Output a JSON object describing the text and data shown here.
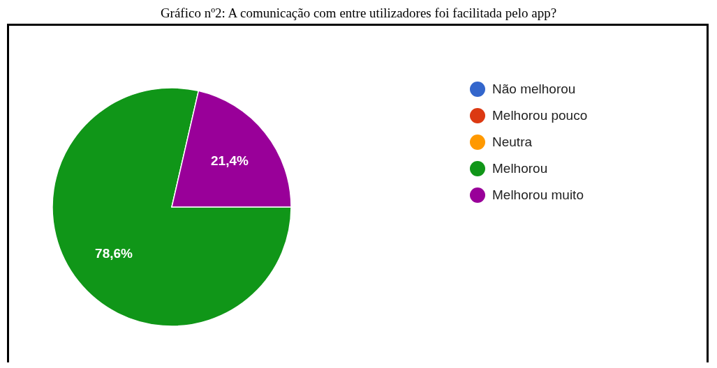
{
  "chart_data": {
    "type": "pie",
    "title": "Gráfico nº2: A comunicação com entre utilizadores foi facilitada pelo app?",
    "categories": [
      "Não melhorou",
      "Melhorou pouco",
      "Neutra",
      "Melhorou",
      "Melhorou muito"
    ],
    "values": [
      0,
      0,
      0,
      78.6,
      21.4
    ],
    "colors": [
      "#3366cc",
      "#dc3912",
      "#ff9900",
      "#109618",
      "#990099"
    ],
    "value_labels": [
      null,
      null,
      null,
      "78,6%",
      "21,4%"
    ],
    "legend": "right"
  }
}
